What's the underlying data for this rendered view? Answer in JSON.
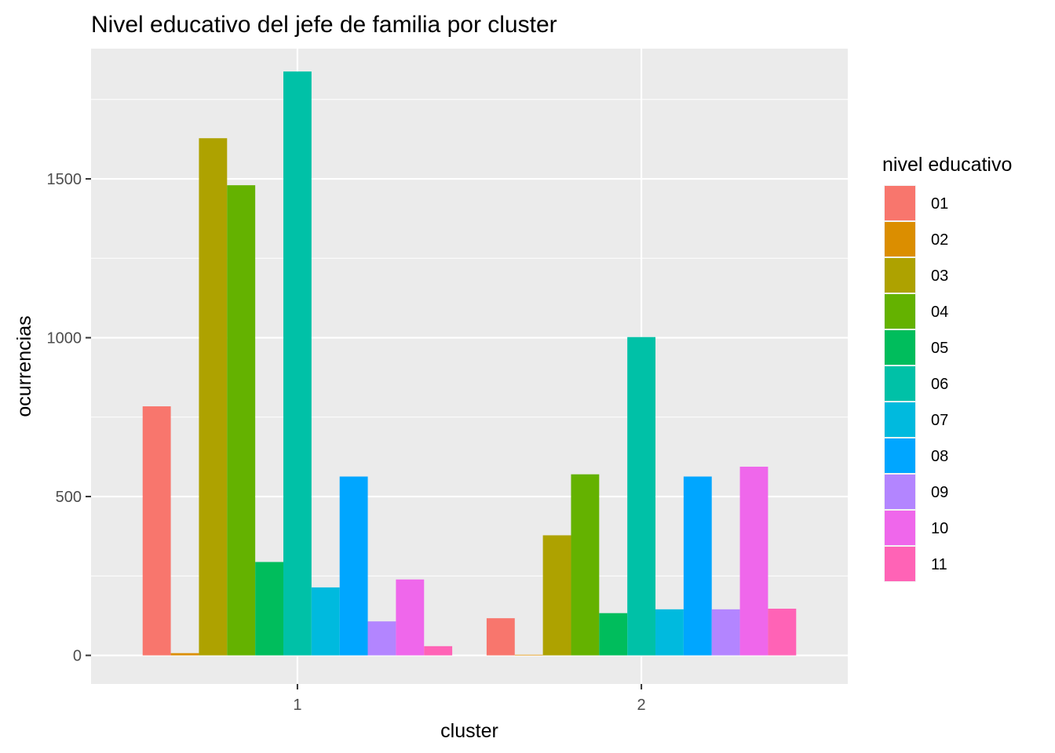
{
  "chart_data": {
    "type": "bar",
    "title": "Nivel educativo del jefe de familia por cluster",
    "xlabel": "cluster",
    "ylabel": "ocurrencias",
    "categories": [
      "1",
      "2"
    ],
    "ylim": [
      -90,
      1910
    ],
    "yticks": [
      0,
      500,
      1000,
      1500
    ],
    "grid": true,
    "legend_title": "nivel educativo",
    "legend_position": "right",
    "series": [
      {
        "name": "01",
        "color": "#F8766D",
        "values": [
          784,
          117
        ]
      },
      {
        "name": "02",
        "color": "#DB8E00",
        "values": [
          7,
          2
        ]
      },
      {
        "name": "03",
        "color": "#AEA200",
        "values": [
          1628,
          378
        ]
      },
      {
        "name": "04",
        "color": "#64B200",
        "values": [
          1480,
          570
        ]
      },
      {
        "name": "05",
        "color": "#00BD5C",
        "values": [
          294,
          133
        ]
      },
      {
        "name": "06",
        "color": "#00C1A7",
        "values": [
          1838,
          1002
        ]
      },
      {
        "name": "07",
        "color": "#00BADE",
        "values": [
          214,
          145
        ]
      },
      {
        "name": "08",
        "color": "#00A6FF",
        "values": [
          563,
          563
        ]
      },
      {
        "name": "09",
        "color": "#B385FF",
        "values": [
          107,
          145
        ]
      },
      {
        "name": "10",
        "color": "#EF67EB",
        "values": [
          239,
          594
        ]
      },
      {
        "name": "11",
        "color": "#FF63B6",
        "values": [
          29,
          147
        ]
      }
    ]
  }
}
